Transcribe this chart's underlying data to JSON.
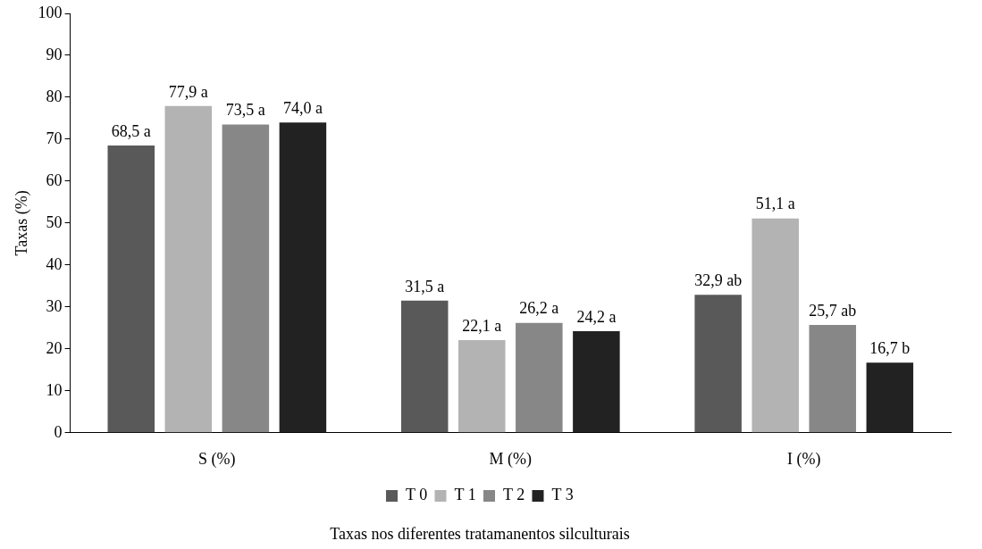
{
  "chart_data": {
    "type": "bar",
    "xlabel": "Taxas nos diferentes tratamanentos silculturais",
    "ylabel": "Taxas (%)",
    "categories": [
      "S (%)",
      "M (%)",
      "I (%)"
    ],
    "series": [
      {
        "name": "T 0",
        "color": "#595959",
        "values": [
          68.5,
          31.5,
          32.9
        ],
        "value_labels": [
          "68,5 a",
          "31,5 a",
          "32,9 ab"
        ]
      },
      {
        "name": "T 1",
        "color": "#b3b3b3",
        "values": [
          77.9,
          22.1,
          51.1
        ],
        "value_labels": [
          "77,9 a",
          "22,1 a",
          "51,1 a"
        ]
      },
      {
        "name": "T 2",
        "color": "#878787",
        "values": [
          73.5,
          26.2,
          25.7
        ],
        "value_labels": [
          "73,5 a",
          "26,2 a",
          "25,7 ab"
        ]
      },
      {
        "name": "T 3",
        "color": "#222222",
        "values": [
          74.0,
          24.2,
          16.7
        ],
        "value_labels": [
          "74,0 a",
          "24,2 a",
          "16,7 b"
        ]
      }
    ],
    "ylim": [
      0,
      100
    ],
    "yticks": [
      0,
      10,
      20,
      30,
      40,
      50,
      60,
      70,
      80,
      90,
      100
    ],
    "grid": false,
    "legend": "bottom"
  }
}
